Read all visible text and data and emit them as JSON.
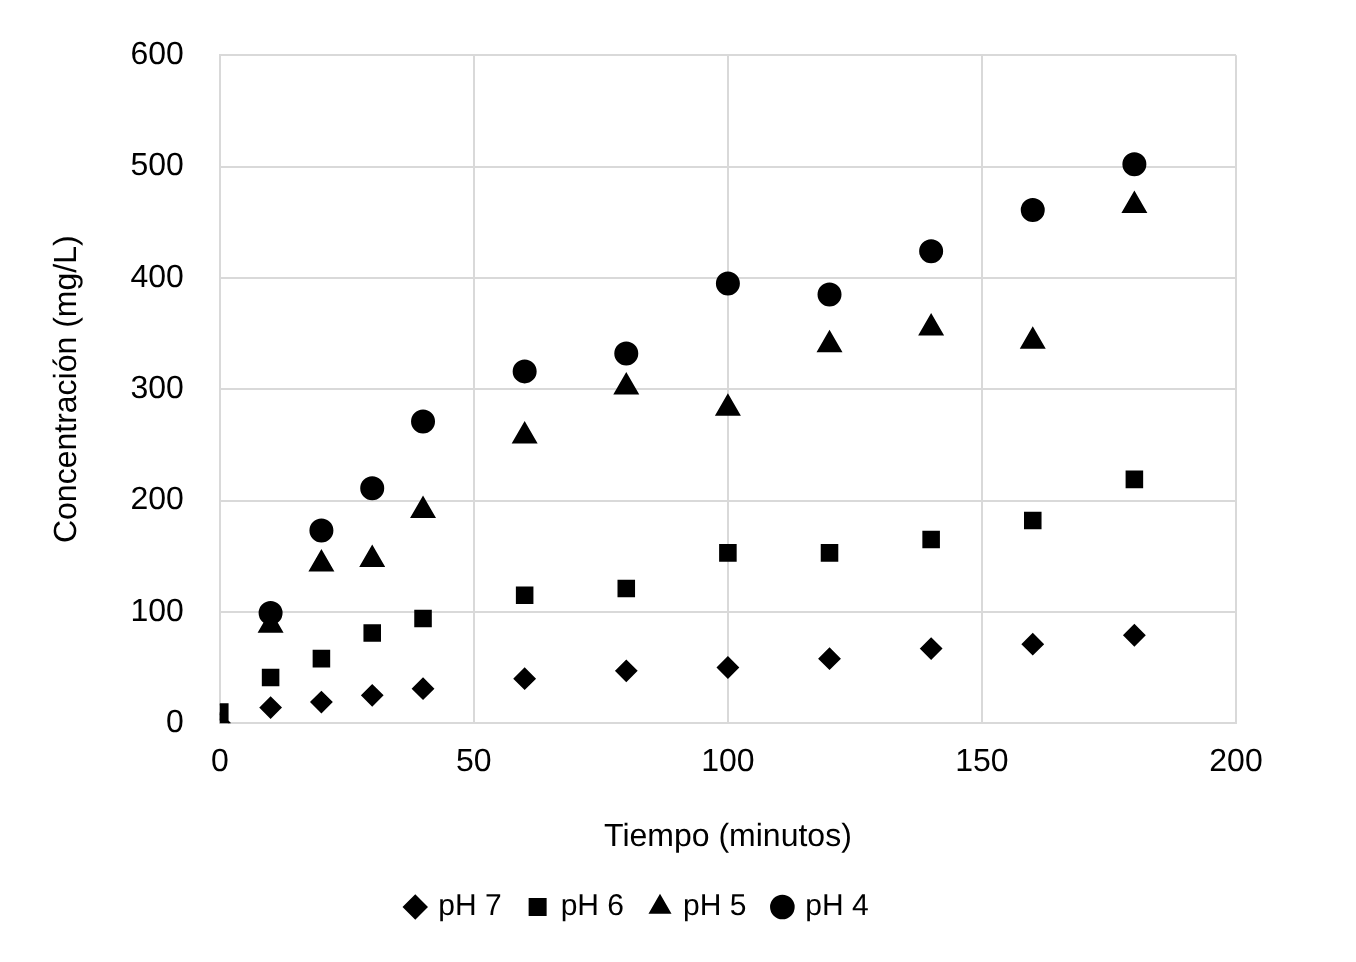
{
  "chart_data": {
    "type": "scatter",
    "xlabel": "Tiempo (minutos)",
    "ylabel": "Concentración (mg/L)",
    "x": [
      0,
      10,
      20,
      30,
      40,
      60,
      80,
      100,
      120,
      140,
      160,
      180
    ],
    "series": [
      {
        "name": "pH 7",
        "color": "#000000",
        "marker": "diamond",
        "values": [
          0,
          14,
          19,
          25,
          31,
          40,
          47,
          50,
          58,
          67,
          71,
          79
        ]
      },
      {
        "name": "pH 6",
        "color": "#000000",
        "marker": "square",
        "values": [
          10,
          41,
          58,
          81,
          94,
          115,
          121,
          153,
          153,
          165,
          182,
          219
        ]
      },
      {
        "name": "pH 5",
        "color": "#000000",
        "marker": "triangle",
        "values": [
          null,
          88,
          143,
          147,
          191,
          258,
          302,
          283,
          340,
          355,
          343,
          465
        ]
      },
      {
        "name": "pH 4",
        "color": "#000000",
        "marker": "circle",
        "values": [
          null,
          99,
          173,
          211,
          271,
          316,
          332,
          395,
          385,
          424,
          461,
          502
        ]
      }
    ],
    "xlim": [
      0,
      200
    ],
    "xticks": [
      0,
      50,
      100,
      150,
      200
    ],
    "ylim": [
      0,
      600
    ],
    "yticks": [
      0,
      100,
      200,
      300,
      400,
      500,
      600
    ],
    "grid": true,
    "legend": "bottom"
  }
}
